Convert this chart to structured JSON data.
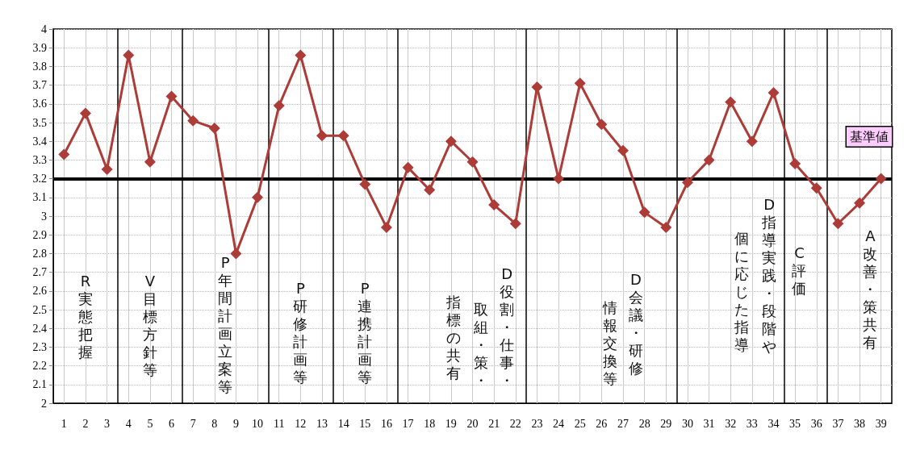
{
  "chart_data": {
    "type": "line",
    "x": [
      1,
      2,
      3,
      4,
      5,
      6,
      7,
      8,
      9,
      10,
      11,
      12,
      13,
      14,
      15,
      16,
      17,
      18,
      19,
      20,
      21,
      22,
      23,
      24,
      25,
      26,
      27,
      28,
      29,
      30,
      31,
      32,
      33,
      34,
      35,
      36,
      37,
      38,
      39
    ],
    "series": [
      {
        "color": "#ad3b37",
        "values": [
          3.33,
          3.55,
          3.25,
          3.86,
          3.29,
          3.64,
          3.51,
          3.47,
          2.8,
          3.1,
          3.59,
          3.86,
          3.43,
          3.43,
          3.17,
          2.94,
          3.26,
          3.14,
          3.4,
          3.29,
          3.06,
          2.96,
          3.69,
          3.2,
          3.71,
          3.49,
          3.35,
          3.02,
          2.94,
          3.18,
          3.3,
          3.61,
          3.4,
          3.66,
          3.28,
          3.15,
          2.96,
          3.07,
          3.2
        ]
      }
    ],
    "xlim": [
      0.5,
      39.5
    ],
    "xticks": [
      1,
      2,
      3,
      4,
      5,
      6,
      7,
      8,
      9,
      10,
      11,
      12,
      13,
      14,
      15,
      16,
      17,
      18,
      19,
      20,
      21,
      22,
      23,
      24,
      25,
      26,
      27,
      28,
      29,
      30,
      31,
      32,
      33,
      34,
      35,
      36,
      37,
      38,
      39
    ],
    "ylim": [
      2,
      4
    ],
    "yticks": [
      2,
      2.1,
      2.2,
      2.3,
      2.4,
      2.5,
      2.6,
      2.7,
      2.8,
      2.9,
      3,
      3.1,
      3.2,
      3.3,
      3.4,
      3.5,
      3.6,
      3.7,
      3.8,
      3.9,
      4
    ],
    "ref_lines": [
      {
        "axis": "y",
        "value": 3.2,
        "label": "基準値",
        "color": "#000000"
      },
      {
        "axis": "x",
        "value": 3.5,
        "color": "#000000"
      },
      {
        "axis": "x",
        "value": 6.5,
        "color": "#000000"
      },
      {
        "axis": "x",
        "value": 10.5,
        "color": "#000000"
      },
      {
        "axis": "x",
        "value": 13.5,
        "color": "#000000"
      },
      {
        "axis": "x",
        "value": 16.5,
        "color": "#000000"
      },
      {
        "axis": "x",
        "value": 22.5,
        "color": "#000000"
      },
      {
        "axis": "x",
        "value": 29.5,
        "color": "#000000"
      },
      {
        "axis": "x",
        "value": 34.5,
        "color": "#000000"
      },
      {
        "axis": "x",
        "value": 36.5,
        "color": "#000000"
      }
    ],
    "annotations": [
      "R実態把握",
      "V目標方針等",
      "P年間計画立案等",
      "P研修計画等",
      "P連携計画等",
      "D役割・仕事・",
      "取組・策・",
      "指標の共有",
      "D会議・研修",
      "情報交換等",
      "D指導実践・段階や",
      "個に応じた指導",
      "C評価",
      "A改善・策共有"
    ],
    "grid": true,
    "marker": "diamond",
    "line_style": "solid"
  }
}
